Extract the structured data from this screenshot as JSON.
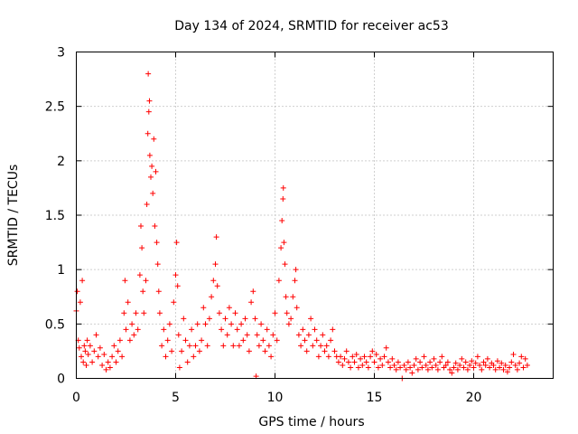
{
  "chart_data": {
    "type": "scatter",
    "title": "Day 134 of 2024, SRMTID for receiver ac53",
    "xlabel": "GPS time / hours",
    "ylabel": "SRMTID / TECUs",
    "xlim": [
      0,
      24
    ],
    "ylim": [
      0,
      3
    ],
    "xticks": [
      "0",
      "5",
      "10",
      "15",
      "20"
    ],
    "yticks": [
      "0",
      "0.5",
      "1",
      "1.5",
      "2",
      "2.5",
      "3"
    ],
    "grid": true,
    "marker": "+",
    "marker_color": "#ff0000",
    "series": [
      {
        "name": "SRMTID",
        "points": [
          [
            0.0,
            0.62
          ],
          [
            0.05,
            0.8
          ],
          [
            0.1,
            0.35
          ],
          [
            0.15,
            0.28
          ],
          [
            0.2,
            0.7
          ],
          [
            0.25,
            0.2
          ],
          [
            0.3,
            0.9
          ],
          [
            0.35,
            0.15
          ],
          [
            0.4,
            0.3
          ],
          [
            0.45,
            0.25
          ],
          [
            0.5,
            0.12
          ],
          [
            0.55,
            0.35
          ],
          [
            0.6,
            0.22
          ],
          [
            0.7,
            0.3
          ],
          [
            0.8,
            0.15
          ],
          [
            0.9,
            0.25
          ],
          [
            1.0,
            0.4
          ],
          [
            1.1,
            0.2
          ],
          [
            1.2,
            0.28
          ],
          [
            1.3,
            0.12
          ],
          [
            1.4,
            0.22
          ],
          [
            1.5,
            0.08
          ],
          [
            1.6,
            0.15
          ],
          [
            1.7,
            0.1
          ],
          [
            1.8,
            0.2
          ],
          [
            1.9,
            0.3
          ],
          [
            2.0,
            0.15
          ],
          [
            2.1,
            0.25
          ],
          [
            2.2,
            0.35
          ],
          [
            2.3,
            0.2
          ],
          [
            2.4,
            0.6
          ],
          [
            2.45,
            0.9
          ],
          [
            2.5,
            0.45
          ],
          [
            2.6,
            0.7
          ],
          [
            2.7,
            0.35
          ],
          [
            2.8,
            0.5
          ],
          [
            2.9,
            0.4
          ],
          [
            3.0,
            0.6
          ],
          [
            3.1,
            0.45
          ],
          [
            3.2,
            0.95
          ],
          [
            3.25,
            1.4
          ],
          [
            3.3,
            1.2
          ],
          [
            3.35,
            0.8
          ],
          [
            3.4,
            0.6
          ],
          [
            3.5,
            0.9
          ],
          [
            3.55,
            1.6
          ],
          [
            3.6,
            2.25
          ],
          [
            3.62,
            2.8
          ],
          [
            3.65,
            2.45
          ],
          [
            3.68,
            2.55
          ],
          [
            3.7,
            2.05
          ],
          [
            3.75,
            1.85
          ],
          [
            3.8,
            1.95
          ],
          [
            3.85,
            1.7
          ],
          [
            3.9,
            2.2
          ],
          [
            3.95,
            1.4
          ],
          [
            4.0,
            1.9
          ],
          [
            4.05,
            1.25
          ],
          [
            4.1,
            1.05
          ],
          [
            4.15,
            0.8
          ],
          [
            4.2,
            0.6
          ],
          [
            4.3,
            0.3
          ],
          [
            4.4,
            0.45
          ],
          [
            4.5,
            0.2
          ],
          [
            4.6,
            0.35
          ],
          [
            4.7,
            0.5
          ],
          [
            4.8,
            0.25
          ],
          [
            4.9,
            0.7
          ],
          [
            5.0,
            0.95
          ],
          [
            5.05,
            1.25
          ],
          [
            5.1,
            0.85
          ],
          [
            5.15,
            0.4
          ],
          [
            5.2,
            0.1
          ],
          [
            5.3,
            0.25
          ],
          [
            5.4,
            0.55
          ],
          [
            5.5,
            0.35
          ],
          [
            5.6,
            0.15
          ],
          [
            5.7,
            0.3
          ],
          [
            5.8,
            0.45
          ],
          [
            5.9,
            0.2
          ],
          [
            6.0,
            0.3
          ],
          [
            6.1,
            0.5
          ],
          [
            6.2,
            0.25
          ],
          [
            6.3,
            0.35
          ],
          [
            6.4,
            0.65
          ],
          [
            6.5,
            0.5
          ],
          [
            6.6,
            0.3
          ],
          [
            6.7,
            0.55
          ],
          [
            6.8,
            0.75
          ],
          [
            6.9,
            0.9
          ],
          [
            7.0,
            1.05
          ],
          [
            7.05,
            1.3
          ],
          [
            7.1,
            0.85
          ],
          [
            7.2,
            0.6
          ],
          [
            7.3,
            0.45
          ],
          [
            7.4,
            0.3
          ],
          [
            7.5,
            0.55
          ],
          [
            7.6,
            0.4
          ],
          [
            7.7,
            0.65
          ],
          [
            7.8,
            0.5
          ],
          [
            7.9,
            0.3
          ],
          [
            8.0,
            0.6
          ],
          [
            8.1,
            0.45
          ],
          [
            8.2,
            0.3
          ],
          [
            8.3,
            0.5
          ],
          [
            8.4,
            0.35
          ],
          [
            8.5,
            0.55
          ],
          [
            8.6,
            0.4
          ],
          [
            8.7,
            0.25
          ],
          [
            8.8,
            0.7
          ],
          [
            8.9,
            0.8
          ],
          [
            9.0,
            0.55
          ],
          [
            9.05,
            0.02
          ],
          [
            9.1,
            0.4
          ],
          [
            9.2,
            0.3
          ],
          [
            9.3,
            0.5
          ],
          [
            9.4,
            0.35
          ],
          [
            9.5,
            0.25
          ],
          [
            9.6,
            0.45
          ],
          [
            9.7,
            0.3
          ],
          [
            9.8,
            0.2
          ],
          [
            9.9,
            0.4
          ],
          [
            10.0,
            0.6
          ],
          [
            10.1,
            0.35
          ],
          [
            10.2,
            0.9
          ],
          [
            10.3,
            1.2
          ],
          [
            10.35,
            1.45
          ],
          [
            10.4,
            1.65
          ],
          [
            10.42,
            1.75
          ],
          [
            10.45,
            1.25
          ],
          [
            10.5,
            1.05
          ],
          [
            10.55,
            0.75
          ],
          [
            10.6,
            0.6
          ],
          [
            10.7,
            0.5
          ],
          [
            10.8,
            0.55
          ],
          [
            10.9,
            0.75
          ],
          [
            11.0,
            0.9
          ],
          [
            11.05,
            1.0
          ],
          [
            11.1,
            0.65
          ],
          [
            11.2,
            0.4
          ],
          [
            11.3,
            0.3
          ],
          [
            11.4,
            0.45
          ],
          [
            11.5,
            0.35
          ],
          [
            11.6,
            0.25
          ],
          [
            11.7,
            0.4
          ],
          [
            11.8,
            0.55
          ],
          [
            11.9,
            0.3
          ],
          [
            12.0,
            0.45
          ],
          [
            12.1,
            0.35
          ],
          [
            12.2,
            0.2
          ],
          [
            12.3,
            0.3
          ],
          [
            12.4,
            0.4
          ],
          [
            12.5,
            0.25
          ],
          [
            12.6,
            0.3
          ],
          [
            12.7,
            0.2
          ],
          [
            12.8,
            0.35
          ],
          [
            12.9,
            0.45
          ],
          [
            13.0,
            0.25
          ],
          [
            13.1,
            0.2
          ],
          [
            13.2,
            0.15
          ],
          [
            13.3,
            0.2
          ],
          [
            13.4,
            0.12
          ],
          [
            13.5,
            0.18
          ],
          [
            13.6,
            0.25
          ],
          [
            13.7,
            0.15
          ],
          [
            13.8,
            0.1
          ],
          [
            13.9,
            0.2
          ],
          [
            14.0,
            0.15
          ],
          [
            14.1,
            0.22
          ],
          [
            14.2,
            0.1
          ],
          [
            14.3,
            0.18
          ],
          [
            14.4,
            0.12
          ],
          [
            14.5,
            0.2
          ],
          [
            14.6,
            0.15
          ],
          [
            14.7,
            0.1
          ],
          [
            14.8,
            0.2
          ],
          [
            14.9,
            0.25
          ],
          [
            15.0,
            0.15
          ],
          [
            15.1,
            0.22
          ],
          [
            15.2,
            0.1
          ],
          [
            15.3,
            0.18
          ],
          [
            15.4,
            0.12
          ],
          [
            15.5,
            0.2
          ],
          [
            15.6,
            0.28
          ],
          [
            15.7,
            0.15
          ],
          [
            15.8,
            0.1
          ],
          [
            15.9,
            0.18
          ],
          [
            16.0,
            0.12
          ],
          [
            16.1,
            0.08
          ],
          [
            16.2,
            0.15
          ],
          [
            16.3,
            0.1
          ],
          [
            16.4,
            0.0
          ],
          [
            16.5,
            0.12
          ],
          [
            16.6,
            0.08
          ],
          [
            16.7,
            0.15
          ],
          [
            16.8,
            0.1
          ],
          [
            16.9,
            0.05
          ],
          [
            17.0,
            0.12
          ],
          [
            17.1,
            0.18
          ],
          [
            17.2,
            0.08
          ],
          [
            17.3,
            0.15
          ],
          [
            17.4,
            0.1
          ],
          [
            17.5,
            0.2
          ],
          [
            17.6,
            0.12
          ],
          [
            17.7,
            0.08
          ],
          [
            17.8,
            0.15
          ],
          [
            17.9,
            0.1
          ],
          [
            18.0,
            0.18
          ],
          [
            18.1,
            0.12
          ],
          [
            18.2,
            0.08
          ],
          [
            18.3,
            0.15
          ],
          [
            18.4,
            0.2
          ],
          [
            18.5,
            0.1
          ],
          [
            18.6,
            0.12
          ],
          [
            18.7,
            0.15
          ],
          [
            18.8,
            0.08
          ],
          [
            18.9,
            0.05
          ],
          [
            19.0,
            0.1
          ],
          [
            19.1,
            0.14
          ],
          [
            19.2,
            0.08
          ],
          [
            19.3,
            0.12
          ],
          [
            19.4,
            0.18
          ],
          [
            19.5,
            0.1
          ],
          [
            19.6,
            0.15
          ],
          [
            19.7,
            0.08
          ],
          [
            19.8,
            0.12
          ],
          [
            19.9,
            0.16
          ],
          [
            20.0,
            0.1
          ],
          [
            20.1,
            0.14
          ],
          [
            20.2,
            0.2
          ],
          [
            20.3,
            0.12
          ],
          [
            20.4,
            0.08
          ],
          [
            20.5,
            0.15
          ],
          [
            20.6,
            0.12
          ],
          [
            20.7,
            0.18
          ],
          [
            20.8,
            0.1
          ],
          [
            20.9,
            0.14
          ],
          [
            21.0,
            0.12
          ],
          [
            21.1,
            0.08
          ],
          [
            21.2,
            0.16
          ],
          [
            21.3,
            0.1
          ],
          [
            21.4,
            0.14
          ],
          [
            21.5,
            0.08
          ],
          [
            21.6,
            0.12
          ],
          [
            21.7,
            0.06
          ],
          [
            21.8,
            0.1
          ],
          [
            21.9,
            0.15
          ],
          [
            22.0,
            0.22
          ],
          [
            22.1,
            0.12
          ],
          [
            22.2,
            0.08
          ],
          [
            22.3,
            0.14
          ],
          [
            22.4,
            0.2
          ],
          [
            22.5,
            0.1
          ],
          [
            22.6,
            0.18
          ],
          [
            22.7,
            0.12
          ]
        ]
      }
    ]
  }
}
